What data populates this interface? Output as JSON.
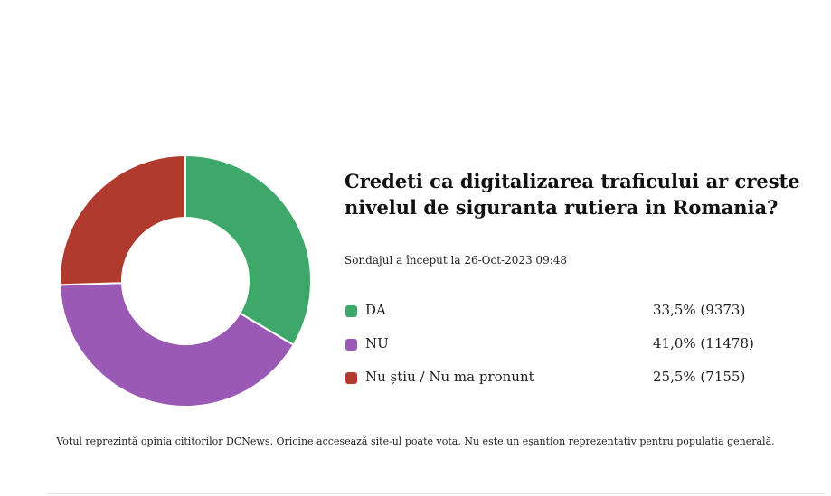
{
  "poll": {
    "question": "Credeti ca digitalizarea traficului ar creste nivelul de siguranta rutiera in Romania?",
    "started": "Sondajul a început la 26-Oct-2023 09:48",
    "disclaimer": "Votul reprezintă opinia cititorilor DCNews. Oricine accesează site-ul poate vota. Nu este un eșantion reprezentativ pentru populația generală."
  },
  "chart_data": {
    "type": "pie",
    "style": "donut",
    "categories": [
      "DA",
      "NU",
      "Nu știu / Nu ma pronunt"
    ],
    "values": [
      33.5,
      41.0,
      25.5
    ],
    "counts": [
      9373,
      11478,
      7155
    ],
    "value_labels": [
      "33,5% (9373)",
      "41,0% (11478)",
      "25,5% (7155)"
    ],
    "colors": [
      "#3ea86a",
      "#9b59b6",
      "#b03a2e"
    ],
    "legend_position": "right"
  }
}
